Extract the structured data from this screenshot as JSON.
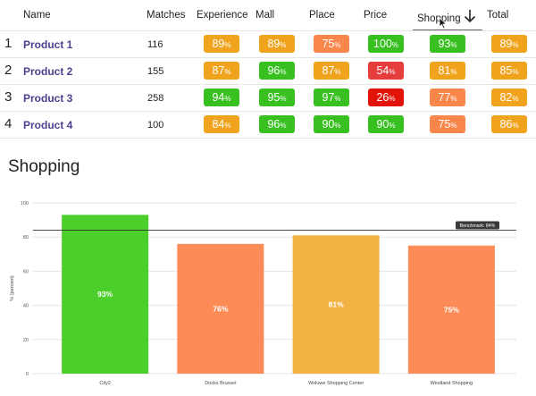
{
  "colors": {
    "green": "#37c01f",
    "orange": "#f0a41d",
    "light_orange": "#f9864a",
    "red": "#e53c3c",
    "dark_red": "#e2140a",
    "product_link": "#4b3f8f"
  },
  "table": {
    "headers": {
      "name": "Name",
      "matches": "Matches",
      "experience": "Experience",
      "mall": "Mall",
      "place": "Place",
      "price": "Price",
      "shopping": "Shopping",
      "total": "Total"
    },
    "sort_icon": "arrow-down-icon",
    "rows": [
      {
        "num": "1",
        "name": "Product 1",
        "matches": "116",
        "scores": [
          {
            "val": "89",
            "color": "#f0a41d"
          },
          {
            "val": "89",
            "color": "#f0a41d"
          },
          {
            "val": "75",
            "color": "#f9864a"
          },
          {
            "val": "100",
            "color": "#37c01f"
          },
          {
            "val": "93",
            "color": "#37c01f"
          },
          {
            "val": "89",
            "color": "#f0a41d"
          }
        ]
      },
      {
        "num": "2",
        "name": "Product 2",
        "matches": "155",
        "scores": [
          {
            "val": "87",
            "color": "#f0a41d"
          },
          {
            "val": "96",
            "color": "#37c01f"
          },
          {
            "val": "87",
            "color": "#f0a41d"
          },
          {
            "val": "54",
            "color": "#e53c3c"
          },
          {
            "val": "81",
            "color": "#f0a41d"
          },
          {
            "val": "85",
            "color": "#f0a41d"
          }
        ]
      },
      {
        "num": "3",
        "name": "Product 3",
        "matches": "258",
        "scores": [
          {
            "val": "94",
            "color": "#37c01f"
          },
          {
            "val": "95",
            "color": "#37c01f"
          },
          {
            "val": "97",
            "color": "#37c01f"
          },
          {
            "val": "26",
            "color": "#e2140a"
          },
          {
            "val": "77",
            "color": "#f9864a"
          },
          {
            "val": "82",
            "color": "#f0a41d"
          }
        ]
      },
      {
        "num": "4",
        "name": "Product 4",
        "matches": "100",
        "scores": [
          {
            "val": "84",
            "color": "#f0a41d"
          },
          {
            "val": "96",
            "color": "#37c01f"
          },
          {
            "val": "90",
            "color": "#37c01f"
          },
          {
            "val": "90",
            "color": "#37c01f"
          },
          {
            "val": "75",
            "color": "#f9864a"
          },
          {
            "val": "86",
            "color": "#f0a41d"
          }
        ]
      }
    ],
    "percent_sign": "%"
  },
  "chart_title": "Shopping",
  "chart_data": {
    "type": "bar",
    "title": "Shopping",
    "categories": [
      "City2",
      "Docks Bruxsel",
      "Woluwe Shopping Center",
      "Westland Shopping"
    ],
    "values": [
      93,
      76,
      81,
      75
    ],
    "value_labels": [
      "93%",
      "76%",
      "81%",
      "75%"
    ],
    "bar_colors": [
      "#4ccf2a",
      "#fc8b57",
      "#f2b342",
      "#fc8b57"
    ],
    "ylabel": "% (percent)",
    "xlabel": "",
    "ylim": [
      0,
      100
    ],
    "yticks": [
      0,
      20,
      40,
      60,
      80,
      100
    ],
    "benchmark": {
      "value": 84,
      "label": "Benchmark: 84%"
    },
    "grid": true
  }
}
